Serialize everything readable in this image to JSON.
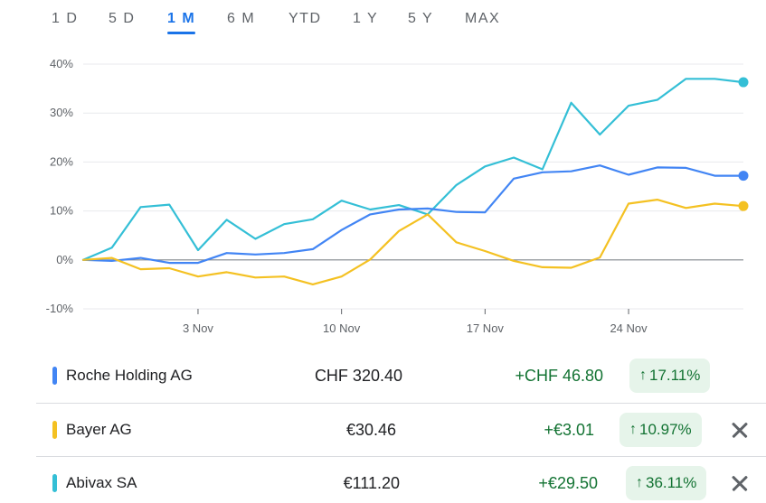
{
  "tabs": [
    {
      "label": "1 D"
    },
    {
      "label": "5 D"
    },
    {
      "label": "1 M",
      "active": true
    },
    {
      "label": "6 M"
    },
    {
      "label": "YTD"
    },
    {
      "label": "1 Y"
    },
    {
      "label": "5 Y"
    },
    {
      "label": "MAX"
    }
  ],
  "chart_data": {
    "type": "line",
    "title": "",
    "xlabel": "",
    "ylabel": "",
    "ylim": [
      -10,
      40
    ],
    "y_ticks": [
      "40%",
      "30%",
      "20%",
      "10%",
      "0%",
      "-10%"
    ],
    "x_ticks": [
      "3 Nov",
      "10 Nov",
      "17 Nov",
      "24 Nov"
    ],
    "grid": true,
    "series": [
      {
        "name": "Abivax SA",
        "color": "#34bfd6",
        "values": [
          0,
          2.5,
          10.8,
          11.3,
          2.0,
          8.2,
          4.3,
          7.3,
          8.3,
          12.1,
          10.3,
          11.2,
          9.3,
          15.3,
          19.1,
          20.9,
          18.5,
          32.1,
          25.6,
          31.5,
          32.7,
          37.0,
          37.0,
          36.3
        ]
      },
      {
        "name": "Roche Holding AG",
        "color": "#4285f4",
        "values": [
          0,
          -0.2,
          0.4,
          -0.6,
          -0.6,
          1.4,
          1.1,
          1.4,
          2.2,
          6.1,
          9.3,
          10.3,
          10.5,
          9.8,
          9.7,
          16.6,
          17.9,
          18.1,
          19.3,
          17.4,
          18.9,
          18.8,
          17.2,
          17.2
        ]
      },
      {
        "name": "Bayer AG",
        "color": "#f4c122",
        "values": [
          0,
          0.4,
          -1.9,
          -1.7,
          -3.4,
          -2.5,
          -3.6,
          -3.4,
          -5.0,
          -3.4,
          0.1,
          5.9,
          9.3,
          3.6,
          1.8,
          -0.2,
          -1.5,
          -1.6,
          0.5,
          11.5,
          12.3,
          10.6,
          11.5,
          11.0
        ]
      }
    ]
  },
  "rows": [
    {
      "name": "Roche Holding AG",
      "color": "#4285f4",
      "price": "CHF 320.40",
      "change": "+CHF 46.80",
      "pct": "17.11%",
      "arrow": "↑",
      "removable": false
    },
    {
      "name": "Bayer AG",
      "color": "#f4c122",
      "price": "€30.46",
      "change": "+€3.01",
      "pct": "10.97%",
      "arrow": "↑",
      "removable": true
    },
    {
      "name": "Abivax SA",
      "color": "#34bfd6",
      "price": "€111.20",
      "change": "+€29.50",
      "pct": "36.11%",
      "arrow": "↑",
      "removable": true
    }
  ]
}
